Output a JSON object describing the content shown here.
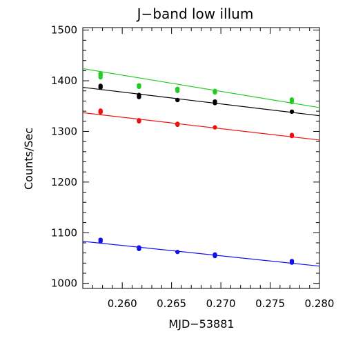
{
  "chart_data": {
    "type": "scatter",
    "title": "J−band low illum",
    "xlabel": "MJD−53881",
    "ylabel": "Counts/Sec",
    "xlim": [
      0.256,
      0.28
    ],
    "ylim": [
      990,
      1505
    ],
    "grid": false,
    "x_ticks": [
      0.26,
      0.265,
      0.27,
      0.275,
      0.28
    ],
    "x_tick_labels": [
      "0.260",
      "0.265",
      "0.270",
      "0.275",
      "0.280"
    ],
    "y_ticks": [
      1000,
      1100,
      1200,
      1300,
      1400,
      1500
    ],
    "y_tick_labels": [
      "1000",
      "1100",
      "1200",
      "1300",
      "1400",
      "1500"
    ],
    "series": [
      {
        "color": "#22cc22",
        "points": [
          {
            "x": 0.2578,
            "y": 1407
          },
          {
            "x": 0.2578,
            "y": 1411
          },
          {
            "x": 0.2578,
            "y": 1414
          },
          {
            "x": 0.2617,
            "y": 1388
          },
          {
            "x": 0.2617,
            "y": 1391
          },
          {
            "x": 0.2656,
            "y": 1380
          },
          {
            "x": 0.2656,
            "y": 1384
          },
          {
            "x": 0.2694,
            "y": 1377
          },
          {
            "x": 0.2694,
            "y": 1380
          },
          {
            "x": 0.2772,
            "y": 1358
          },
          {
            "x": 0.2772,
            "y": 1363
          }
        ],
        "fit": {
          "x": [
            0.256,
            0.28
          ],
          "y": [
            1424,
            1347
          ]
        }
      },
      {
        "color": "#000000",
        "points": [
          {
            "x": 0.2578,
            "y": 1387
          },
          {
            "x": 0.2578,
            "y": 1390
          },
          {
            "x": 0.2617,
            "y": 1368
          },
          {
            "x": 0.2617,
            "y": 1372
          },
          {
            "x": 0.2656,
            "y": 1362
          },
          {
            "x": 0.2694,
            "y": 1356
          },
          {
            "x": 0.2694,
            "y": 1359
          },
          {
            "x": 0.2772,
            "y": 1339
          }
        ],
        "fit": {
          "x": [
            0.256,
            0.28
          ],
          "y": [
            1387,
            1331
          ]
        }
      },
      {
        "color": "#ee1111",
        "points": [
          {
            "x": 0.2578,
            "y": 1338
          },
          {
            "x": 0.2578,
            "y": 1341
          },
          {
            "x": 0.2617,
            "y": 1320
          },
          {
            "x": 0.2617,
            "y": 1322
          },
          {
            "x": 0.2656,
            "y": 1313
          },
          {
            "x": 0.2656,
            "y": 1315
          },
          {
            "x": 0.2694,
            "y": 1308
          },
          {
            "x": 0.2772,
            "y": 1291
          },
          {
            "x": 0.2772,
            "y": 1293
          }
        ],
        "fit": {
          "x": [
            0.256,
            0.28
          ],
          "y": [
            1337,
            1283
          ]
        }
      },
      {
        "color": "#1111ee",
        "points": [
          {
            "x": 0.2578,
            "y": 1083
          },
          {
            "x": 0.2578,
            "y": 1086
          },
          {
            "x": 0.2617,
            "y": 1068
          },
          {
            "x": 0.2617,
            "y": 1071
          },
          {
            "x": 0.2656,
            "y": 1062
          },
          {
            "x": 0.2694,
            "y": 1054
          },
          {
            "x": 0.2694,
            "y": 1057
          },
          {
            "x": 0.2772,
            "y": 1041
          },
          {
            "x": 0.2772,
            "y": 1044
          }
        ],
        "fit": {
          "x": [
            0.256,
            0.28
          ],
          "y": [
            1083,
            1034
          ]
        }
      }
    ]
  }
}
